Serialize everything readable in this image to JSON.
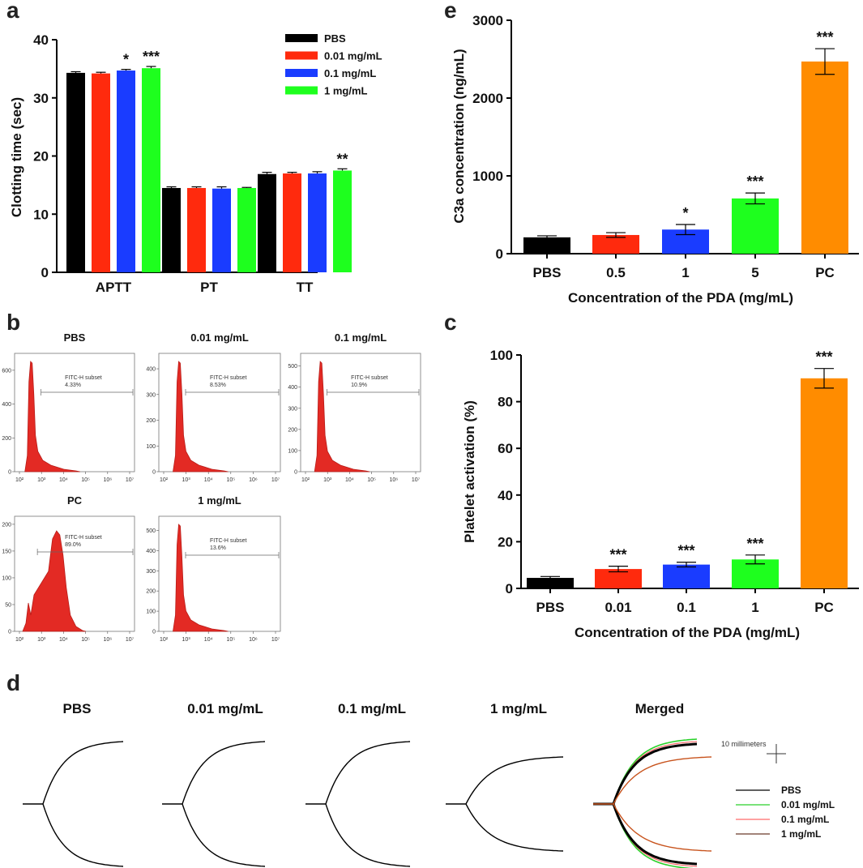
{
  "colors": {
    "PBS": "#000000",
    "c001": "#ff2a0d",
    "c01": "#1a3cff",
    "c1": "#1eff1e",
    "PC": "#ff8c00",
    "hist": "#e32a24"
  },
  "panels": {
    "a": {
      "letter": "a"
    },
    "b": {
      "letter": "b"
    },
    "c": {
      "letter": "c"
    },
    "d": {
      "letter": "d"
    },
    "e": {
      "letter": "e"
    }
  },
  "chart_data": [
    {
      "id": "a",
      "type": "bar",
      "title": "",
      "xlabel": "",
      "ylabel": "Clotting time (sec)",
      "ylim": [
        0,
        40
      ],
      "yticks": [
        0,
        10,
        20,
        30,
        40
      ],
      "categories": [
        "APTT",
        "PT",
        "TT"
      ],
      "series": [
        {
          "name": "PBS",
          "values": [
            34.3,
            14.5,
            16.9
          ],
          "errors": [
            0.2,
            0.2,
            0.3
          ]
        },
        {
          "name": "0.01 mg/mL",
          "values": [
            34.2,
            14.5,
            17.0
          ],
          "errors": [
            0.2,
            0.2,
            0.2
          ]
        },
        {
          "name": "0.1 mg/mL",
          "values": [
            34.7,
            14.4,
            17.0
          ],
          "errors": [
            0.2,
            0.3,
            0.3
          ]
        },
        {
          "name": "1 mg/mL",
          "values": [
            35.1,
            14.5,
            17.5
          ],
          "errors": [
            0.3,
            0.1,
            0.3
          ]
        }
      ],
      "annotations": [
        {
          "category": "APTT",
          "series": "0.1 mg/mL",
          "text": "*"
        },
        {
          "category": "APTT",
          "series": "1 mg/mL",
          "text": "***"
        },
        {
          "category": "TT",
          "series": "1 mg/mL",
          "text": "**"
        }
      ],
      "legend": [
        "PBS",
        "0.01 mg/mL",
        "0.1 mg/mL",
        "1 mg/mL"
      ],
      "legend_position": "top-right"
    },
    {
      "id": "e",
      "type": "bar",
      "title": "",
      "xlabel": "Concentration of the PDA (mg/mL)",
      "ylabel": "C3a concentration (ng/mL)",
      "ylim": [
        0,
        3000
      ],
      "yticks": [
        0,
        1000,
        2000,
        3000
      ],
      "categories": [
        "PBS",
        "0.5",
        "1",
        "5",
        "PC"
      ],
      "values": [
        210,
        240,
        310,
        710,
        2470
      ],
      "errors": [
        20,
        30,
        65,
        70,
        165
      ],
      "annotations": [
        "",
        "",
        "*",
        "***",
        "***"
      ]
    },
    {
      "id": "c",
      "type": "bar",
      "title": "",
      "xlabel": "Concentration of the PDA (mg/mL)",
      "ylabel": "Platelet activation (%)",
      "ylim": [
        0,
        100
      ],
      "yticks": [
        0,
        20,
        40,
        60,
        80,
        100
      ],
      "categories": [
        "PBS",
        "0.01",
        "0.1",
        "1",
        "PC"
      ],
      "values": [
        4.5,
        8.3,
        10.2,
        12.4,
        90.0
      ],
      "errors": [
        0.6,
        1.2,
        1.0,
        1.9,
        4.2
      ],
      "annotations": [
        "",
        "***",
        "***",
        "***",
        "***"
      ]
    },
    {
      "id": "b",
      "type": "histogram",
      "xlabel_ticks": [
        "10²",
        "10³",
        "10⁴",
        "10⁵",
        "10⁶",
        "10⁷"
      ],
      "gate_label": "FITC-H subset",
      "histograms": [
        {
          "title": "PBS",
          "percent": "4.33%",
          "yticks": [
            0,
            200,
            400,
            600
          ],
          "ymax": 700
        },
        {
          "title": "0.01 mg/mL",
          "percent": "8.53%",
          "yticks": [
            0,
            100,
            200,
            300,
            400
          ],
          "ymax": 460
        },
        {
          "title": "0.1 mg/mL",
          "percent": "10.9%",
          "yticks": [
            0,
            100,
            200,
            300,
            400,
            500
          ],
          "ymax": 560
        },
        {
          "title": "PC",
          "percent": "89.0%",
          "yticks": [
            0,
            50,
            100,
            150,
            200
          ],
          "ymax": 215
        },
        {
          "title": "1 mg/mL",
          "percent": "13.6%",
          "yticks": [
            0,
            100,
            200,
            300,
            400,
            500
          ],
          "ymax": 570
        }
      ]
    },
    {
      "id": "d",
      "type": "line",
      "titles": [
        "PBS",
        "0.01 mg/mL",
        "0.1 mg/mL",
        "1 mg/mL",
        "Merged"
      ],
      "scale_label": "10 millimeters",
      "legend": [
        {
          "name": "PBS",
          "color": "#000000"
        },
        {
          "name": "0.01 mg/mL",
          "color": "#2ad12a"
        },
        {
          "name": "0.1 mg/mL",
          "color": "#ff6a6a"
        },
        {
          "name": "1 mg/mL",
          "color": "#6b3a2a"
        }
      ]
    }
  ]
}
